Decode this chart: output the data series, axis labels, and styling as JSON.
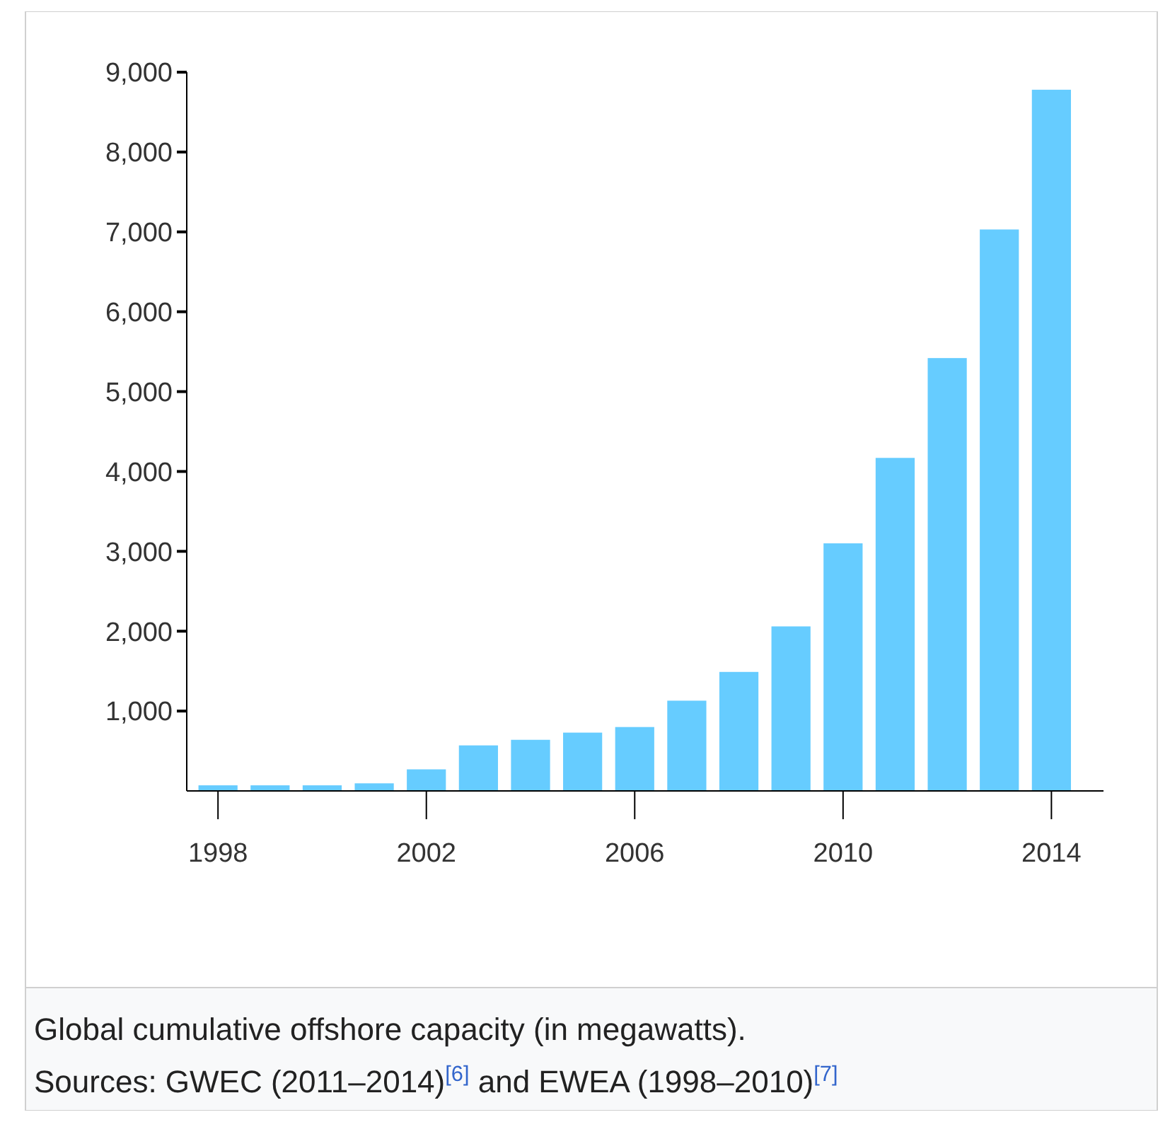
{
  "chart_data": {
    "type": "bar",
    "x": [
      1998,
      1999,
      2000,
      2001,
      2002,
      2003,
      2004,
      2005,
      2006,
      2007,
      2008,
      2009,
      2010,
      2011,
      2012,
      2013,
      2014
    ],
    "values": [
      70,
      70,
      70,
      95,
      270,
      570,
      640,
      730,
      800,
      1130,
      1490,
      2060,
      3100,
      4170,
      5420,
      7030,
      8780
    ],
    "color": "#66ccff",
    "xlim": [
      1997.4,
      2015
    ],
    "xticks": [
      1998,
      2002,
      2006,
      2010,
      2014
    ],
    "ylim": [
      0,
      9000
    ],
    "yticks": [
      {
        "value": 1000,
        "label": "1,000"
      },
      {
        "value": 2000,
        "label": "2,000"
      },
      {
        "value": 3000,
        "label": "3,000"
      },
      {
        "value": 4000,
        "label": "4,000"
      },
      {
        "value": 5000,
        "label": "5,000"
      },
      {
        "value": 6000,
        "label": "6,000"
      },
      {
        "value": 7000,
        "label": "7,000"
      },
      {
        "value": 8000,
        "label": "8,000"
      },
      {
        "value": 9000,
        "label": "9,000"
      }
    ],
    "grid": false,
    "annotations": [
      "Global cumulative offshore capacity (in megawatts).",
      "Sources: GWEC (2011–2014)$^{[6]}$ and EWEA (1998–2010)$^{[7]}$"
    ]
  }
}
